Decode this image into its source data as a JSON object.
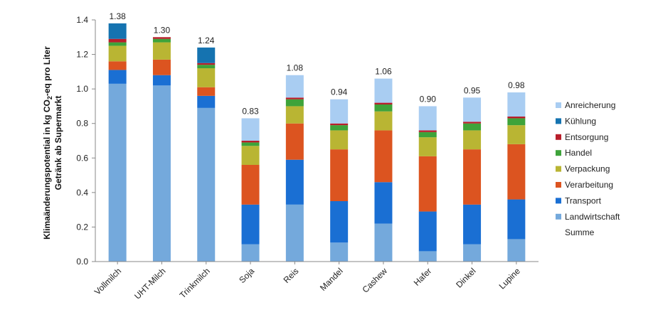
{
  "chart_data": {
    "type": "bar",
    "stacked": true,
    "ylabel": {
      "line1_pre": "Klimaänderungspotential in kg CO",
      "line1_sub": "2",
      "line1_post": "-eq pro Liter",
      "line2": "Getränk ab Supermarkt"
    },
    "ylim": [
      0,
      1.4
    ],
    "yticks": [
      "0.0",
      "0.2",
      "0.4",
      "0.6",
      "0.8",
      "1.0",
      "1.2",
      "1.4"
    ],
    "grid": false,
    "legend_position": "right",
    "categories": [
      "Vollmilch",
      "UHT-Milch",
      "Trinkmilch",
      "Soja",
      "Reis",
      "Mandel",
      "Cashew",
      "Hafer",
      "Dinkel",
      "Lupine"
    ],
    "totals": [
      1.38,
      1.3,
      1.24,
      0.83,
      1.08,
      0.94,
      1.06,
      0.9,
      0.95,
      0.98
    ],
    "total_labels": [
      "1.38",
      "1.30",
      "1.24",
      "0.83",
      "1.08",
      "0.94",
      "1.06",
      "0.90",
      "0.95",
      "0.98"
    ],
    "series": [
      {
        "name": "Landwirtschaft",
        "color": "#74a9dc",
        "values": [
          1.03,
          1.02,
          0.89,
          0.1,
          0.33,
          0.11,
          0.22,
          0.06,
          0.1,
          0.13
        ]
      },
      {
        "name": "Transport",
        "color": "#1a6fd3",
        "values": [
          0.08,
          0.06,
          0.07,
          0.23,
          0.26,
          0.24,
          0.24,
          0.23,
          0.23,
          0.23
        ]
      },
      {
        "name": "Verarbeitung",
        "color": "#dc5420",
        "values": [
          0.05,
          0.09,
          0.05,
          0.23,
          0.21,
          0.3,
          0.3,
          0.32,
          0.32,
          0.32
        ]
      },
      {
        "name": "Verpackung",
        "color": "#b9b533",
        "values": [
          0.09,
          0.1,
          0.11,
          0.11,
          0.1,
          0.11,
          0.11,
          0.11,
          0.11,
          0.11
        ]
      },
      {
        "name": "Handel",
        "color": "#3ea33a",
        "values": [
          0.02,
          0.02,
          0.02,
          0.02,
          0.04,
          0.03,
          0.04,
          0.03,
          0.04,
          0.04
        ]
      },
      {
        "name": "Entsorgung",
        "color": "#b81e2a",
        "values": [
          0.02,
          0.01,
          0.01,
          0.01,
          0.01,
          0.01,
          0.01,
          0.01,
          0.01,
          0.01
        ]
      },
      {
        "name": "Kühlung",
        "color": "#1573b0",
        "values": [
          0.09,
          0.0,
          0.09,
          0.0,
          0.0,
          0.0,
          0.0,
          0.0,
          0.0,
          0.0
        ]
      },
      {
        "name": "Anreicherung",
        "color": "#a9cdf2",
        "values": [
          0.0,
          0.0,
          0.0,
          0.13,
          0.13,
          0.14,
          0.14,
          0.14,
          0.14,
          0.14
        ]
      }
    ],
    "legend": [
      "Anreicherung",
      "Kühlung",
      "Entsorgung",
      "Handel",
      "Verpackung",
      "Verarbeitung",
      "Transport",
      "Landwirtschaft",
      "Summe"
    ]
  }
}
